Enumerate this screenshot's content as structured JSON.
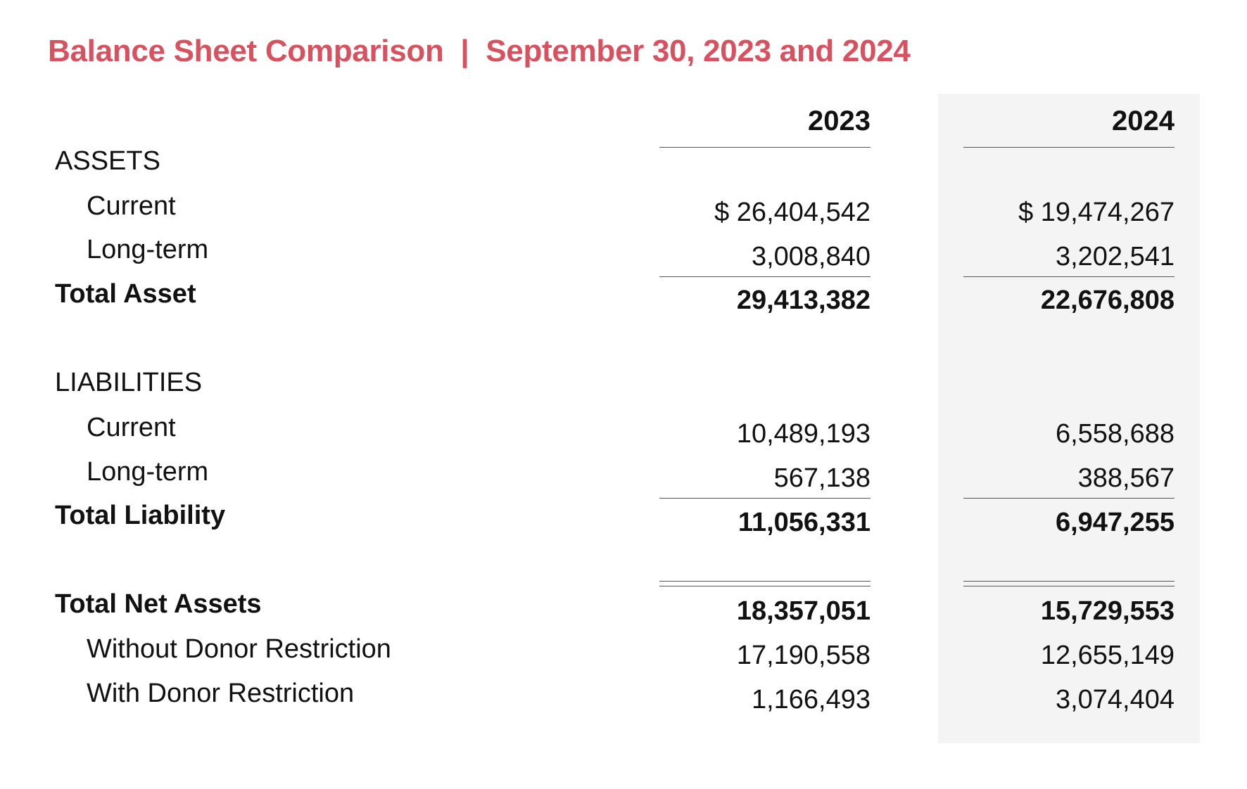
{
  "title": "Balance Sheet Comparison  |  September 30, 2023 and 2024",
  "columns": [
    "2023",
    "2024"
  ],
  "colors": {
    "title": "#d8515f",
    "shade": "#f4f4f4"
  },
  "assets": {
    "heading": "ASSETS",
    "current": {
      "label": "Current",
      "v2023": "$ 26,404,542",
      "v2024": "$ 19,474,267"
    },
    "long_term": {
      "label": "Long-term",
      "v2023": "3,008,840",
      "v2024": "3,202,541"
    },
    "total": {
      "label": "Total Asset",
      "v2023": "29,413,382",
      "v2024": "22,676,808"
    }
  },
  "liabilities": {
    "heading": "LIABILITIES",
    "current": {
      "label": "Current",
      "v2023": "10,489,193",
      "v2024": "6,558,688"
    },
    "long_term": {
      "label": "Long-term",
      "v2023": "567,138",
      "v2024": "388,567"
    },
    "total": {
      "label": "Total Liability",
      "v2023": "11,056,331",
      "v2024": "6,947,255"
    }
  },
  "net_assets": {
    "total": {
      "label": "Total Net Assets",
      "v2023": "18,357,051",
      "v2024": "15,729,553"
    },
    "without": {
      "label": "Without Donor Restriction",
      "v2023": "17,190,558",
      "v2024": "12,655,149"
    },
    "with": {
      "label": "With Donor Restriction",
      "v2023": "1,166,493",
      "v2024": "3,074,404"
    }
  }
}
